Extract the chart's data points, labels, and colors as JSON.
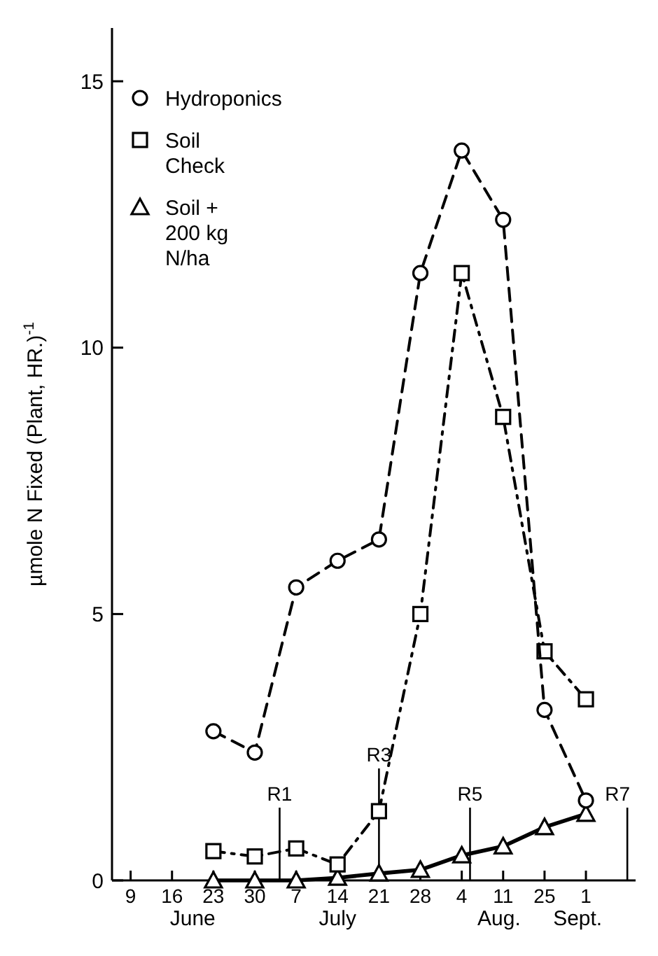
{
  "chart_data": {
    "type": "line",
    "ylabel": "µmole N Fixed (Plant, HR.)$^{-1}$",
    "categories": [
      "9",
      "16",
      "23",
      "30",
      "7",
      "14",
      "21",
      "28",
      "4",
      "11",
      "25",
      "1",
      null
    ],
    "series": [
      {
        "name": "Hydroponics",
        "color": "#000000",
        "marker": "circle",
        "line_style": "dashed",
        "values": [
          null,
          null,
          2.8,
          2.4,
          5.5,
          6.0,
          6.4,
          11.4,
          13.7,
          12.4,
          3.2,
          1.5,
          null
        ]
      },
      {
        "name": "Soil Check",
        "color": "#000000",
        "marker": "square",
        "line_style": "dotted",
        "values": [
          null,
          null,
          0.55,
          0.45,
          0.6,
          0.3,
          1.3,
          5.0,
          11.4,
          8.7,
          4.3,
          3.4,
          null
        ]
      },
      {
        "name": "Soil + 200 kg N/ha",
        "color": "#000000",
        "marker": "triangle",
        "line_style": "solid",
        "values": [
          null,
          null,
          0,
          0,
          0,
          0.05,
          0.13,
          0.2,
          0.47,
          0.64,
          1.0,
          1.25,
          null
        ]
      }
    ],
    "ylim": [
      0,
      16
    ],
    "yticks": [
      0,
      5,
      10,
      15
    ],
    "annotations": [
      "June",
      "July",
      "Aug.",
      "Sept.",
      {
        "text": "R1",
        "y": 0
      },
      {
        "text": "R3",
        "x": "21",
        "y": 0
      },
      "R5",
      "R7"
    ],
    "legend": "top left"
  }
}
